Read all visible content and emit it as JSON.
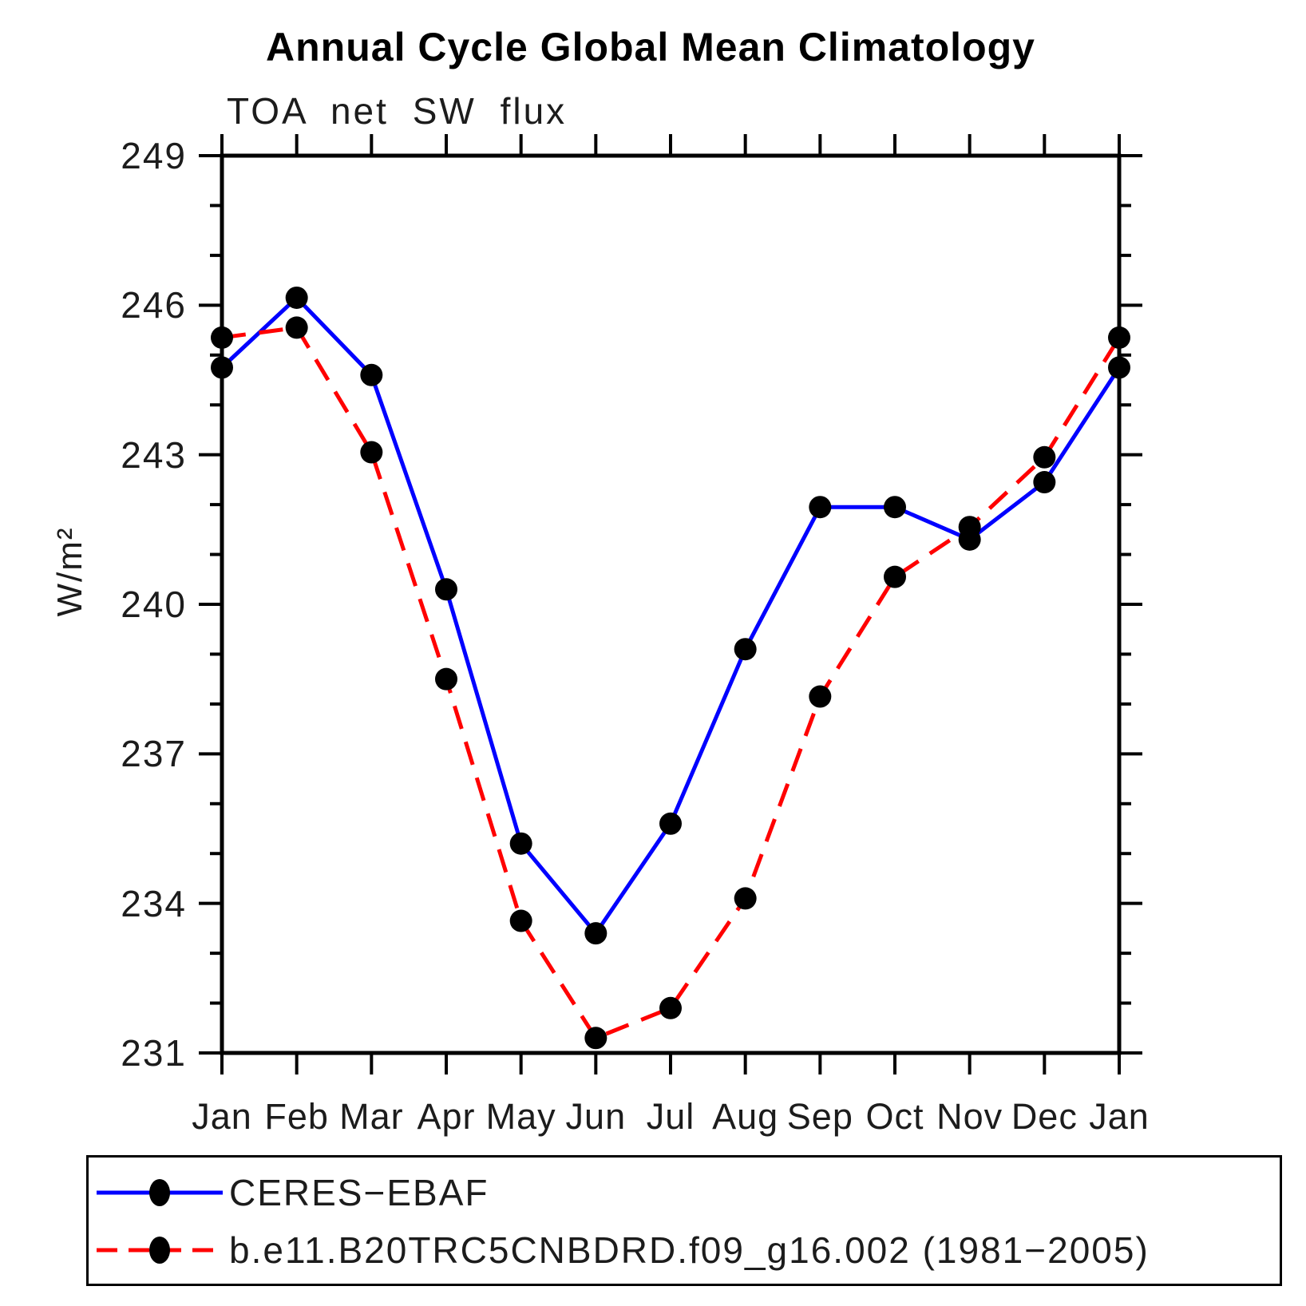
{
  "page": {
    "background": "#ffffff"
  },
  "title": "Annual Cycle Global Mean Climatology",
  "subtitle": "TOA net SW flux",
  "ylabel": "W/m²",
  "chart_data": {
    "type": "line",
    "categories": [
      "Jan",
      "Feb",
      "Mar",
      "Apr",
      "May",
      "Jun",
      "Jul",
      "Aug",
      "Sep",
      "Oct",
      "Nov",
      "Dec",
      "Jan"
    ],
    "ylim": [
      231,
      249
    ],
    "yticks": [
      231,
      234,
      237,
      240,
      243,
      246,
      249
    ],
    "minor_tick_step": 1,
    "grid": false,
    "legend_position": "bottom",
    "axis_color": "#000000",
    "text_color": "#1c1c1c",
    "marker": "filled-circle",
    "marker_color": "#000000",
    "series": [
      {
        "name": "CERES−EBAF",
        "line_color": "#0000ff",
        "line_style": "solid",
        "values": [
          244.75,
          246.15,
          244.6,
          240.3,
          235.2,
          233.4,
          235.6,
          239.1,
          241.95,
          241.95,
          241.3,
          242.45,
          244.75
        ]
      },
      {
        "name": "b.e11.B20TRC5CNBDRD.f09_g16.002 (1981−2005)",
        "line_color": "#ff0000",
        "line_style": "dashed",
        "values": [
          245.35,
          245.55,
          243.05,
          238.5,
          233.65,
          231.3,
          231.9,
          234.1,
          238.15,
          240.55,
          241.55,
          242.95,
          245.35
        ]
      }
    ]
  }
}
